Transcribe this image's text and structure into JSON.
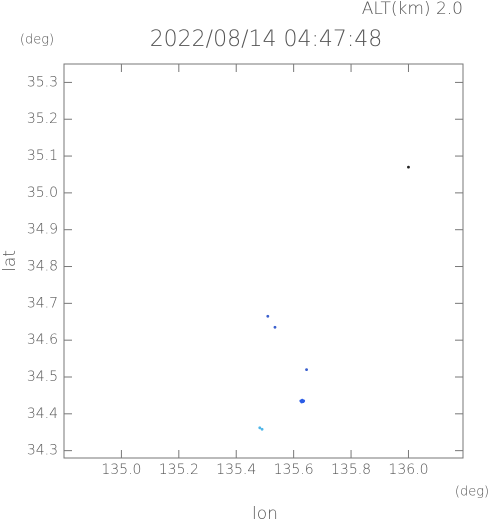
{
  "chart_data": {
    "type": "scatter",
    "title": "2022/08/14 04:47:48",
    "subtitle": "ALT(km) 2.0",
    "x_label": "lon",
    "y_label": "lat",
    "x_unit": "(deg)",
    "y_unit": "(deg)",
    "xlim": [
      134.8,
      136.19
    ],
    "ylim": [
      34.28,
      35.35
    ],
    "xticks": [
      {
        "value": 135.0,
        "label": "135.0"
      },
      135.2,
      135.4,
      135.6,
      135.8,
      {
        "value": 136.0,
        "label": "136.0"
      }
    ],
    "yticks": [
      35.3,
      35.2,
      35.1,
      {
        "value": 35.0,
        "label": "35.0"
      },
      34.9,
      34.8,
      34.7,
      34.6,
      34.5,
      34.4,
      34.3
    ],
    "series": [
      {
        "color": "#222222",
        "x": [
          136.0
        ],
        "values": [
          35.07
        ]
      },
      {
        "color": "#3a5fcd",
        "x": [
          135.51,
          135.535,
          135.645
        ],
        "values": [
          34.665,
          34.635,
          34.52
        ]
      },
      {
        "color": "#2b5ce6",
        "x": [
          135.625,
          135.63,
          135.635,
          135.628,
          135.633
        ],
        "values": [
          34.435,
          34.437,
          34.435,
          34.432,
          34.433
        ]
      },
      {
        "color": "#4fb6e8",
        "x": [
          135.482,
          135.49
        ],
        "values": [
          34.362,
          34.358
        ]
      }
    ]
  }
}
